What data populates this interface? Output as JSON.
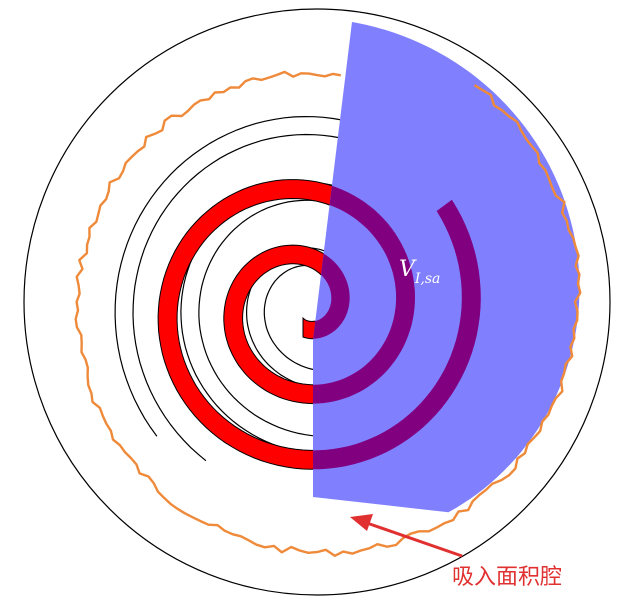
{
  "labels": {
    "volume_main": "V",
    "volume_sub": "I,sa",
    "annotation": "吸入面积腔"
  },
  "colors": {
    "housing_stroke": "#000000",
    "orbiting_scroll_fill": "#ff0000",
    "suction_volume_fill": "#8080ff",
    "overlap_fill": "#800080",
    "boundary_stroke": "#ee8a3a",
    "annotation_color": "#e03030",
    "label_color": "#ffffff"
  }
}
